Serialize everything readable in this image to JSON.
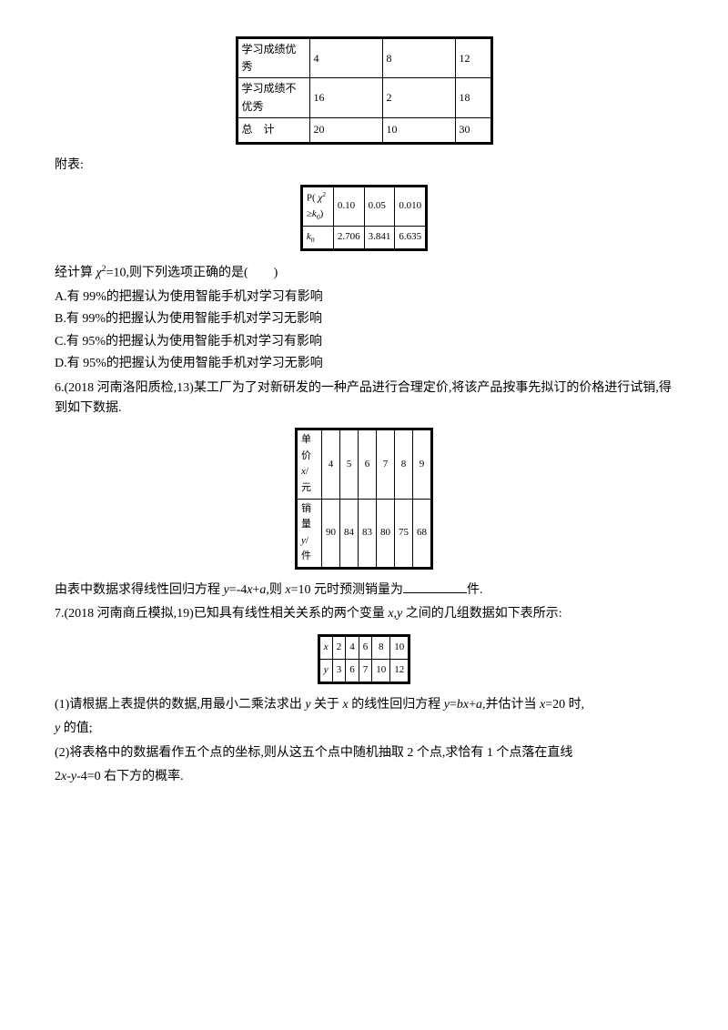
{
  "table1": {
    "rows": [
      {
        "label": "学习成绩优秀",
        "c1": "4",
        "c2": "8",
        "c3": "12"
      },
      {
        "label": "学习成绩不优秀",
        "c1": "16",
        "c2": "2",
        "c3": "18"
      },
      {
        "label": "总　计",
        "c1": "20",
        "c2": "10",
        "c3": "30"
      }
    ]
  },
  "appendix_label": "附表:",
  "table2": {
    "rows": [
      {
        "label": "P( χ²≥k₀)",
        "c1": "0.10",
        "c2": "0.05",
        "c3": "0.010"
      },
      {
        "label": "k₀",
        "c1": "2.706",
        "c2": "3.841",
        "c3": "6.635"
      }
    ],
    "row1_label_prefix": "P( ",
    "row1_label_chi": "χ",
    "row1_label_sup": "2",
    "row1_label_geq": "≥",
    "row1_label_k": "k",
    "row1_label_sub": "0",
    "row1_label_suffix": ")",
    "row2_k": "k",
    "row2_sub": "0"
  },
  "calculation_text_prefix": "经计算 ",
  "calculation_chi": "χ",
  "calculation_sup": "2",
  "calculation_text_suffix": "=10,则下列选项正确的是(　　)",
  "options": {
    "a": "A.有 99%的把握认为使用智能手机对学习有影响",
    "b": "B.有 99%的把握认为使用智能手机对学习无影响",
    "c": "C.有 95%的把握认为使用智能手机对学习有影响",
    "d": "D.有 95%的把握认为使用智能手机对学习无影响"
  },
  "q6_prefix": "6.",
  "q6_source": "(2018 河南洛阳质检,13)某工厂为了对新研发的一种产品进行合理定价,将该产品按事先拟订的价格进行试销,得到如下数据.",
  "table3": {
    "header1_label": "单价",
    "header1_var": "x",
    "header1_unit": "/元",
    "row1": [
      "4",
      "5",
      "6",
      "7",
      "8",
      "9"
    ],
    "header2_label": "销量",
    "header2_var": "y",
    "header2_unit": "/件",
    "row2": [
      "90",
      "84",
      "83",
      "80",
      "75",
      "68"
    ]
  },
  "q6_text_prefix": "由表中数据求得线性回归方程 ",
  "q6_y": "y",
  "q6_eq1": "=-4",
  "q6_x": "x",
  "q6_plus": "+",
  "q6_a": "a",
  "q6_mid": ",则 ",
  "q6_x2": "x",
  "q6_eq2": "=10 元时预测销量为",
  "q6_suffix": "件.",
  "q7_prefix": "7.",
  "q7_source": "(2018 河南商丘模拟,19)已知具有线性相关关系的两个变量 ",
  "q7_x": "x",
  "q7_comma": ",",
  "q7_y": "y",
  "q7_suffix": " 之间的几组数据如下表所示:",
  "table4": {
    "row1_label": "x",
    "row1": [
      "2",
      "4",
      "6",
      "8",
      "10"
    ],
    "row2_label": "y",
    "row2": [
      "3",
      "6",
      "7",
      "10",
      "12"
    ]
  },
  "q7_sub1_prefix": "(1)请根据上表提供的数据,用最小二乘法求出 ",
  "q7_sub1_y": "y",
  "q7_sub1_mid1": " 关于 ",
  "q7_sub1_x1": "x",
  "q7_sub1_mid2": " 的线性回归方程 ",
  "q7_sub1_y2": "y",
  "q7_sub1_eq": "=",
  "q7_sub1_b": "b",
  "q7_sub1_x2": "x",
  "q7_sub1_plus": "+",
  "q7_sub1_a": "a",
  "q7_sub1_mid3": ",并估计当 ",
  "q7_sub1_x3": "x",
  "q7_sub1_suffix": "=20 时,",
  "q7_sub1_line2_y": "y",
  "q7_sub1_line2_suffix": " 的值;",
  "q7_sub2_text": "(2)将表格中的数据看作五个点的坐标,则从这五个点中随机抽取 2 个点,求恰有 1 个点落在直线",
  "q7_sub2_line2": "2",
  "q7_sub2_x": "x",
  "q7_sub2_minus": "-",
  "q7_sub2_y": "y",
  "q7_sub2_suffix": "-4=0 右下方的概率."
}
